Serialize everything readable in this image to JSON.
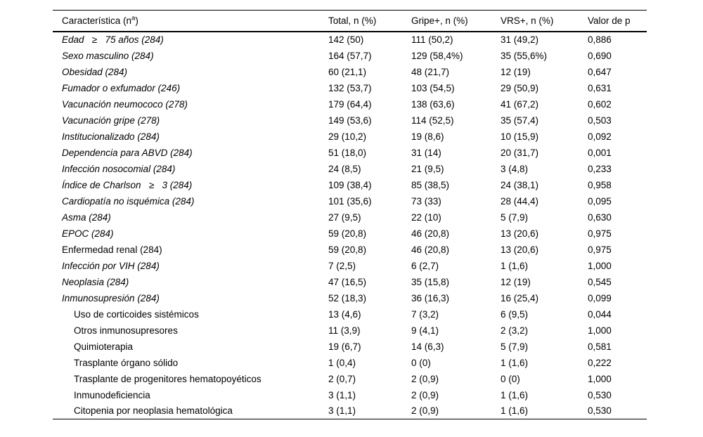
{
  "page": {
    "background": "#ffffff",
    "text_color": "#000000"
  },
  "table": {
    "header": {
      "characteristic_pre": "Característica (n",
      "characteristic_sup": "a",
      "characteristic_post": ")",
      "total": "Total, n (%)",
      "gripe": "Gripe+, n (%)",
      "vrs": "VRS+, n (%)",
      "p": "Valor de p"
    },
    "rows": [
      {
        "label": "Edad   ≥   75 años (284)",
        "italic": true,
        "indent": false,
        "total": "142 (50)",
        "gripe": "111 (50,2)",
        "vrs": "31 (49,2)",
        "p": "0,886"
      },
      {
        "label": "Sexo masculino (284)",
        "italic": true,
        "indent": false,
        "total": "164 (57,7)",
        "gripe": "129 (58,4%)",
        "vrs": "35 (55,6%)",
        "p": "0,690"
      },
      {
        "label": "Obesidad (284)",
        "italic": true,
        "indent": false,
        "total": "60 (21,1)",
        "gripe": "48 (21,7)",
        "vrs": "12 (19)",
        "p": "0,647"
      },
      {
        "label": "Fumador o exfumador (246)",
        "italic": true,
        "indent": false,
        "total": "132 (53,7)",
        "gripe": "103 (54,5)",
        "vrs": "29 (50,9)",
        "p": "0,631"
      },
      {
        "label": "Vacunación neumococo (278)",
        "italic": true,
        "indent": false,
        "total": "179 (64,4)",
        "gripe": "138 (63,6)",
        "vrs": "41 (67,2)",
        "p": "0,602"
      },
      {
        "label": "Vacunación gripe (278)",
        "italic": true,
        "indent": false,
        "total": "149 (53,6)",
        "gripe": "114 (52,5)",
        "vrs": "35 (57,4)",
        "p": "0,503"
      },
      {
        "label": "Institucionalizado (284)",
        "italic": true,
        "indent": false,
        "total": "29 (10,2)",
        "gripe": "19 (8,6)",
        "vrs": "10 (15,9)",
        "p": "0,092"
      },
      {
        "label": "Dependencia para ABVD (284)",
        "italic": true,
        "indent": false,
        "total": "51 (18,0)",
        "gripe": "31 (14)",
        "vrs": "20 (31,7)",
        "p": "0,001"
      },
      {
        "label": "Infección nosocomial (284)",
        "italic": true,
        "indent": false,
        "total": "24 (8,5)",
        "gripe": "21 (9,5)",
        "vrs": "3 (4,8)",
        "p": "0,233"
      },
      {
        "label": "Índice de Charlson   ≥   3 (284)",
        "italic": true,
        "indent": false,
        "total": "109 (38,4)",
        "gripe": "85 (38,5)",
        "vrs": "24 (38,1)",
        "p": "0,958"
      },
      {
        "label": "Cardiopatía no isquémica (284)",
        "italic": true,
        "indent": false,
        "total": "101 (35,6)",
        "gripe": "73 (33)",
        "vrs": "28 (44,4)",
        "p": "0,095"
      },
      {
        "label": "Asma (284)",
        "italic": true,
        "indent": false,
        "total": "27 (9,5)",
        "gripe": "22 (10)",
        "vrs": "5 (7,9)",
        "p": "0,630"
      },
      {
        "label": "EPOC (284)",
        "italic": true,
        "indent": false,
        "total": "59 (20,8)",
        "gripe": "46 (20,8)",
        "vrs": "13 (20,6)",
        "p": "0,975"
      },
      {
        "label": "Enfermedad renal (284)",
        "italic": false,
        "indent": false,
        "total": "59 (20,8)",
        "gripe": "46 (20,8)",
        "vrs": "13 (20,6)",
        "p": "0,975"
      },
      {
        "label": "Infección por VIH (284)",
        "italic": true,
        "indent": false,
        "total": "7 (2,5)",
        "gripe": "6 (2,7)",
        "vrs": "1 (1,6)",
        "p": "1,000"
      },
      {
        "label": "Neoplasia (284)",
        "italic": true,
        "indent": false,
        "total": "47 (16,5)",
        "gripe": "35 (15,8)",
        "vrs": "12 (19)",
        "p": "0,545"
      },
      {
        "label": "Inmunosupresión (284)",
        "italic": true,
        "indent": false,
        "total": "52 (18,3)",
        "gripe": "36 (16,3)",
        "vrs": "16 (25,4)",
        "p": "0,099"
      },
      {
        "label": "Uso de corticoides sistémicos",
        "italic": false,
        "indent": true,
        "total": "13 (4,6)",
        "gripe": "7 (3,2)",
        "vrs": "6 (9,5)",
        "p": "0,044"
      },
      {
        "label": "Otros inmunosupresores",
        "italic": false,
        "indent": true,
        "total": "11 (3,9)",
        "gripe": "9 (4,1)",
        "vrs": "2 (3,2)",
        "p": "1,000"
      },
      {
        "label": "Quimioterapia",
        "italic": false,
        "indent": true,
        "total": "19 (6,7)",
        "gripe": "14 (6,3)",
        "vrs": "5 (7,9)",
        "p": "0,581"
      },
      {
        "label": "Trasplante órgano sólido",
        "italic": false,
        "indent": true,
        "total": "1 (0,4)",
        "gripe": "0 (0)",
        "vrs": "1 (1,6)",
        "p": "0,222"
      },
      {
        "label": "Trasplante de progenitores hematopoyéticos",
        "italic": false,
        "indent": true,
        "total": "2 (0,7)",
        "gripe": "2 (0,9)",
        "vrs": "0 (0)",
        "p": "1,000"
      },
      {
        "label": "Inmunodeficiencia",
        "italic": false,
        "indent": true,
        "total": "3 (1,1)",
        "gripe": "2 (0,9)",
        "vrs": "1 (1,6)",
        "p": "0,530"
      },
      {
        "label": "Citopenia por neoplasia hematológica",
        "italic": false,
        "indent": true,
        "total": "3 (1,1)",
        "gripe": "2 (0,9)",
        "vrs": "1 (1,6)",
        "p": "0,530"
      }
    ]
  }
}
